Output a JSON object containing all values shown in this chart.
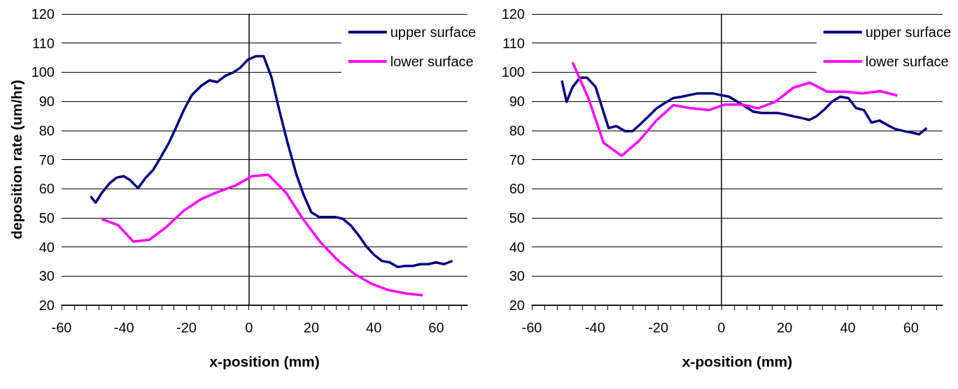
{
  "chart_data": [
    {
      "type": "line",
      "xlabel": "x-position (mm)",
      "ylabel": "deposition rate (um/hr)",
      "xlim": [
        -60,
        70
      ],
      "xticks": [
        -60,
        -40,
        -20,
        0,
        20,
        40,
        60
      ],
      "ylim": [
        20,
        120
      ],
      "yticks": [
        20,
        30,
        40,
        50,
        60,
        70,
        80,
        90,
        100,
        110,
        120
      ],
      "grid": "y",
      "legend": "top right",
      "marker": "none",
      "series": [
        {
          "name": "upper surface",
          "color": "#000080",
          "x": [
            -50.7,
            -49.1,
            -47.1,
            -44.6,
            -42.4,
            -40.1,
            -38.1,
            -35.5,
            -33.1,
            -30.7,
            -28.3,
            -25.7,
            -23.3,
            -20.9,
            -18.3,
            -15.2,
            -12.6,
            -10.2,
            -7.5,
            -5.2,
            -2.8,
            -0.2,
            2.3,
            4.7,
            7.2,
            9.7,
            12.3,
            15.2,
            17.6,
            20.0,
            22.5,
            25.2,
            27.6,
            30.2,
            32.7,
            35.2,
            37.6,
            40.1,
            42.6,
            45.1,
            47.7,
            50.0,
            52.5,
            54.9,
            57.5,
            59.9,
            62.5,
            65.2
          ],
          "values": [
            57.4,
            55.2,
            58.6,
            61.9,
            63.8,
            64.3,
            63.0,
            60.2,
            63.7,
            66.4,
            70.7,
            75.6,
            81.1,
            86.9,
            92.1,
            95.4,
            97.2,
            96.6,
            98.8,
            99.8,
            101.5,
            104.4,
            105.5,
            105.5,
            98.4,
            87.1,
            76.1,
            64.9,
            57.7,
            51.9,
            50.3,
            50.3,
            50.3,
            49.6,
            47.3,
            43.9,
            40.2,
            37.3,
            35.2,
            34.7,
            33.1,
            33.5,
            33.5,
            34.1,
            34.1,
            34.7,
            34.1,
            35.2
          ]
        },
        {
          "name": "lower surface",
          "color": "#ff00ff",
          "x": [
            -47.1,
            -41.8,
            -37.0,
            -31.8,
            -26.5,
            -20.9,
            -15.2,
            -10.0,
            -4.3,
            1.0,
            6.2,
            11.9,
            17.1,
            22.8,
            28.3,
            33.7,
            39.2,
            44.6,
            50.3,
            55.7
          ],
          "values": [
            49.6,
            47.4,
            41.8,
            42.5,
            46.8,
            52.4,
            56.5,
            58.9,
            61.1,
            64.3,
            64.8,
            58.6,
            49.9,
            41.8,
            35.6,
            30.8,
            27.4,
            25.2,
            24.0,
            23.4
          ]
        }
      ]
    },
    {
      "type": "line",
      "xlabel": "x-position (mm)",
      "xlim": [
        -60,
        70
      ],
      "xticks": [
        -60,
        -40,
        -20,
        0,
        20,
        40,
        60
      ],
      "ylim": [
        20,
        120
      ],
      "yticks": [
        20,
        30,
        40,
        50,
        60,
        70,
        80,
        90,
        100,
        110,
        120
      ],
      "grid": "y",
      "legend": "top right",
      "marker": "none",
      "series": [
        {
          "name": "upper surface",
          "color": "#000080",
          "x": [
            -50.5,
            -49.0,
            -47.1,
            -44.8,
            -42.5,
            -39.8,
            -35.7,
            -33.3,
            -30.6,
            -28.1,
            -25.7,
            -23.1,
            -20.6,
            -18.1,
            -15.3,
            -12.6,
            -10.0,
            -7.6,
            -4.9,
            -2.6,
            0.0,
            2.5,
            5.0,
            7.3,
            10.0,
            12.7,
            15.3,
            17.8,
            20.3,
            23.0,
            25.3,
            27.8,
            30.0,
            32.6,
            35.2,
            37.6,
            40.2,
            42.6,
            45.1,
            47.5,
            50.0,
            52.5,
            55.0,
            57.7,
            60.2,
            62.6,
            65.0
          ],
          "values": [
            97.1,
            89.8,
            94.9,
            98.1,
            98.1,
            94.9,
            80.8,
            81.5,
            79.8,
            79.8,
            82.1,
            84.8,
            87.5,
            89.3,
            91.1,
            91.6,
            92.2,
            92.7,
            92.7,
            92.7,
            92.1,
            91.6,
            89.9,
            88.4,
            86.5,
            86.0,
            86.0,
            86.0,
            85.5,
            84.8,
            84.3,
            83.6,
            84.8,
            87.2,
            90.1,
            91.6,
            91.1,
            87.7,
            87.0,
            82.7,
            83.4,
            81.9,
            80.5,
            79.8,
            79.3,
            78.7,
            80.8
          ]
        },
        {
          "name": "lower surface",
          "color": "#ff00ff",
          "x": [
            -47.1,
            -42.0,
            -37.3,
            -31.6,
            -26.1,
            -20.6,
            -15.2,
            -9.6,
            -3.9,
            1.1,
            6.6,
            11.6,
            17.1,
            22.8,
            28.0,
            33.5,
            39.0,
            44.7,
            50.2,
            55.7
          ],
          "values": [
            103.4,
            90.8,
            75.8,
            71.3,
            76.4,
            83.4,
            88.7,
            87.6,
            87.0,
            88.9,
            88.9,
            87.6,
            89.9,
            94.7,
            96.4,
            93.3,
            93.3,
            92.7,
            93.5,
            92.0
          ]
        }
      ]
    }
  ]
}
